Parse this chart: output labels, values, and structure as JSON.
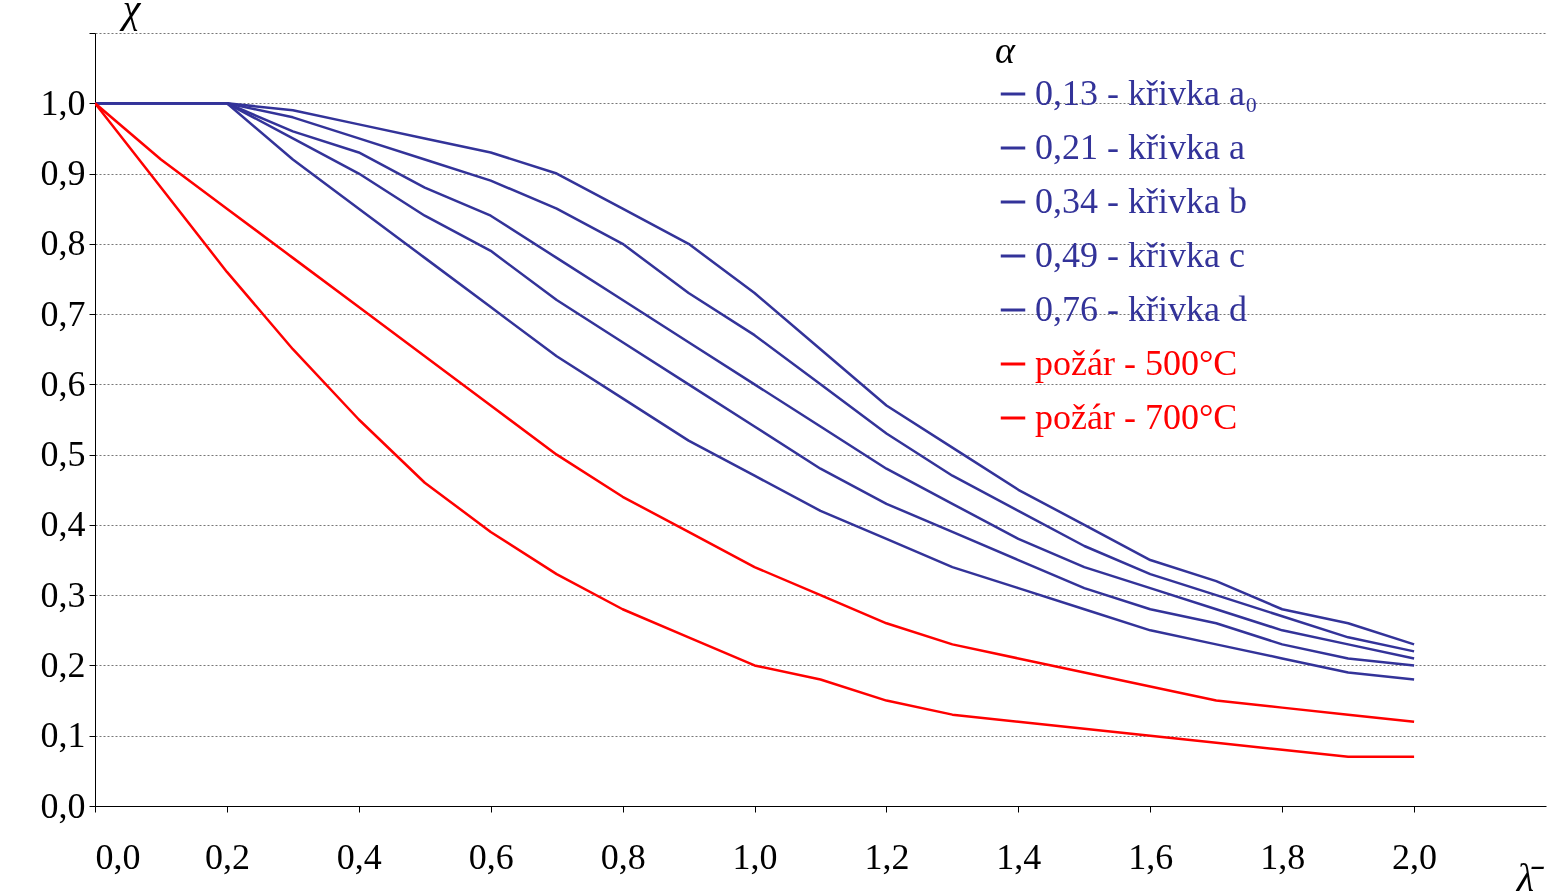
{
  "chart_data": {
    "type": "line",
    "xlabel": "λ̄",
    "ylabel": "χ",
    "legend_title": "α",
    "x": [
      0,
      0.1,
      0.2,
      0.3,
      0.4,
      0.5,
      0.6,
      0.7,
      0.8,
      0.9,
      1.0,
      1.1,
      1.2,
      1.3,
      1.4,
      1.5,
      1.6,
      1.7,
      1.8,
      1.9,
      2.0
    ],
    "series": [
      {
        "name": "0,13 - křivka a₀",
        "color": "#333399",
        "values": [
          1,
          1,
          1,
          0.99,
          0.97,
          0.95,
          0.93,
          0.9,
          0.85,
          0.8,
          0.73,
          0.65,
          0.57,
          0.51,
          0.45,
          0.4,
          0.35,
          0.32,
          0.28,
          0.26,
          0.23
        ]
      },
      {
        "name": "0,21 - křivka a",
        "color": "#333399",
        "values": [
          1,
          1,
          1,
          0.98,
          0.95,
          0.92,
          0.89,
          0.85,
          0.8,
          0.73,
          0.67,
          0.6,
          0.53,
          0.47,
          0.42,
          0.37,
          0.33,
          0.3,
          0.27,
          0.24,
          0.22
        ]
      },
      {
        "name": "0,34 - křivka b",
        "color": "#333399",
        "values": [
          1,
          1,
          1,
          0.96,
          0.93,
          0.88,
          0.84,
          0.78,
          0.72,
          0.66,
          0.6,
          0.54,
          0.48,
          0.43,
          0.38,
          0.34,
          0.31,
          0.28,
          0.25,
          0.23,
          0.21
        ]
      },
      {
        "name": "0,49 - křivka c",
        "color": "#333399",
        "values": [
          1,
          1,
          1,
          0.95,
          0.9,
          0.84,
          0.79,
          0.72,
          0.66,
          0.6,
          0.54,
          0.48,
          0.43,
          0.39,
          0.35,
          0.31,
          0.28,
          0.26,
          0.23,
          0.21,
          0.2
        ]
      },
      {
        "name": "0,76 - křivka d",
        "color": "#333399",
        "values": [
          1,
          1,
          1,
          0.92,
          0.85,
          0.78,
          0.71,
          0.64,
          0.58,
          0.52,
          0.47,
          0.42,
          0.38,
          0.34,
          0.31,
          0.28,
          0.25,
          0.23,
          0.21,
          0.19,
          0.18
        ]
      },
      {
        "name": "požár - 500°C",
        "color": "#ff0000",
        "values": [
          1,
          0.92,
          0.85,
          0.78,
          0.71,
          0.64,
          0.57,
          0.5,
          0.44,
          0.39,
          0.34,
          0.3,
          0.26,
          0.23,
          0.21,
          0.19,
          0.17,
          0.15,
          0.14,
          0.13,
          0.12
        ]
      },
      {
        "name": "požár - 700°C",
        "color": "#ff0000",
        "values": [
          1,
          0.88,
          0.76,
          0.65,
          0.55,
          0.46,
          0.39,
          0.33,
          0.28,
          0.24,
          0.2,
          0.18,
          0.15,
          0.13,
          0.12,
          0.11,
          0.1,
          0.09,
          0.08,
          0.07,
          0.07
        ]
      }
    ],
    "xlim": [
      0,
      2.2
    ],
    "xticks": [
      {
        "value": 0,
        "label": "0,0"
      },
      {
        "value": 0.2,
        "label": "0,2"
      },
      {
        "value": 0.4,
        "label": "0,4"
      },
      {
        "value": 0.6,
        "label": "0,6"
      },
      {
        "value": 0.8,
        "label": "0,8"
      },
      {
        "value": 1.0,
        "label": "1,0"
      },
      {
        "value": 1.2,
        "label": "1,2"
      },
      {
        "value": 1.4,
        "label": "1,4"
      },
      {
        "value": 1.6,
        "label": "1,6"
      },
      {
        "value": 1.8,
        "label": "1,8"
      },
      {
        "value": 2.0,
        "label": "2,0"
      }
    ],
    "ylim": [
      0,
      1.1
    ],
    "yticks": [
      {
        "value": 0,
        "label": "0,0"
      },
      {
        "value": 0.1,
        "label": "0,1"
      },
      {
        "value": 0.2,
        "label": "0,2"
      },
      {
        "value": 0.3,
        "label": "0,3"
      },
      {
        "value": 0.4,
        "label": "0,4"
      },
      {
        "value": 0.5,
        "label": "0,5"
      },
      {
        "value": 0.6,
        "label": "0,6"
      },
      {
        "value": 0.7,
        "label": "0,7"
      },
      {
        "value": 0.8,
        "label": "0,8"
      },
      {
        "value": 0.9,
        "label": "0,9"
      },
      {
        "value": 1.0,
        "label": "1,0"
      },
      {
        "value": 1.1,
        "label": null
      }
    ],
    "grid": "y",
    "legend": "top right",
    "marker": "none",
    "line_style": "solid"
  }
}
